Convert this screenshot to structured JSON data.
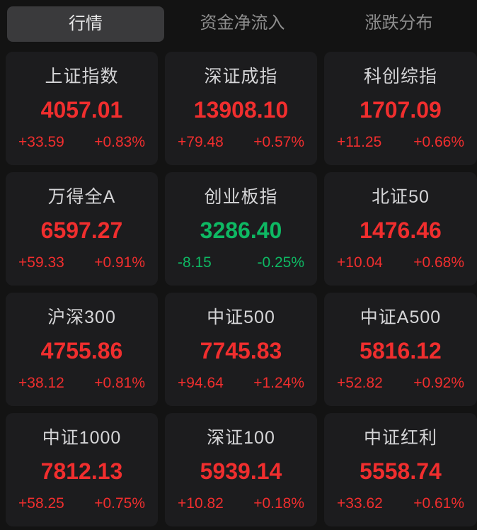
{
  "tab_bar": {
    "tabs": [
      {
        "label": "行情",
        "active": true
      },
      {
        "label": "资金净流入",
        "active": false
      },
      {
        "label": "涨跌分布",
        "active": false
      }
    ]
  },
  "colors": {
    "up": "#f02e2e",
    "down": "#0eb863",
    "page_bg": "#131313",
    "card_bg": "#1c1c1e",
    "active_tab_bg": "#3a3a3c",
    "active_tab_text": "#e9e9e9",
    "inactive_tab_text": "#8d8d8d",
    "index_name_text": "#d5d5d7"
  },
  "indices": [
    {
      "name": "上证指数",
      "value": "4057.01",
      "change": "+33.59",
      "change_pct": "+0.83%",
      "direction": "up"
    },
    {
      "name": "深证成指",
      "value": "13908.10",
      "change": "+79.48",
      "change_pct": "+0.57%",
      "direction": "up"
    },
    {
      "name": "科创综指",
      "value": "1707.09",
      "change": "+11.25",
      "change_pct": "+0.66%",
      "direction": "up"
    },
    {
      "name": "万得全A",
      "value": "6597.27",
      "change": "+59.33",
      "change_pct": "+0.91%",
      "direction": "up"
    },
    {
      "name": "创业板指",
      "value": "3286.40",
      "change": "-8.15",
      "change_pct": "-0.25%",
      "direction": "down"
    },
    {
      "name": "北证50",
      "value": "1476.46",
      "change": "+10.04",
      "change_pct": "+0.68%",
      "direction": "up"
    },
    {
      "name": "沪深300",
      "value": "4755.86",
      "change": "+38.12",
      "change_pct": "+0.81%",
      "direction": "up"
    },
    {
      "name": "中证500",
      "value": "7745.83",
      "change": "+94.64",
      "change_pct": "+1.24%",
      "direction": "up"
    },
    {
      "name": "中证A500",
      "value": "5816.12",
      "change": "+52.82",
      "change_pct": "+0.92%",
      "direction": "up"
    },
    {
      "name": "中证1000",
      "value": "7812.13",
      "change": "+58.25",
      "change_pct": "+0.75%",
      "direction": "up"
    },
    {
      "name": "深证100",
      "value": "5939.14",
      "change": "+10.82",
      "change_pct": "+0.18%",
      "direction": "up"
    },
    {
      "name": "中证红利",
      "value": "5558.74",
      "change": "+33.62",
      "change_pct": "+0.61%",
      "direction": "up"
    }
  ]
}
